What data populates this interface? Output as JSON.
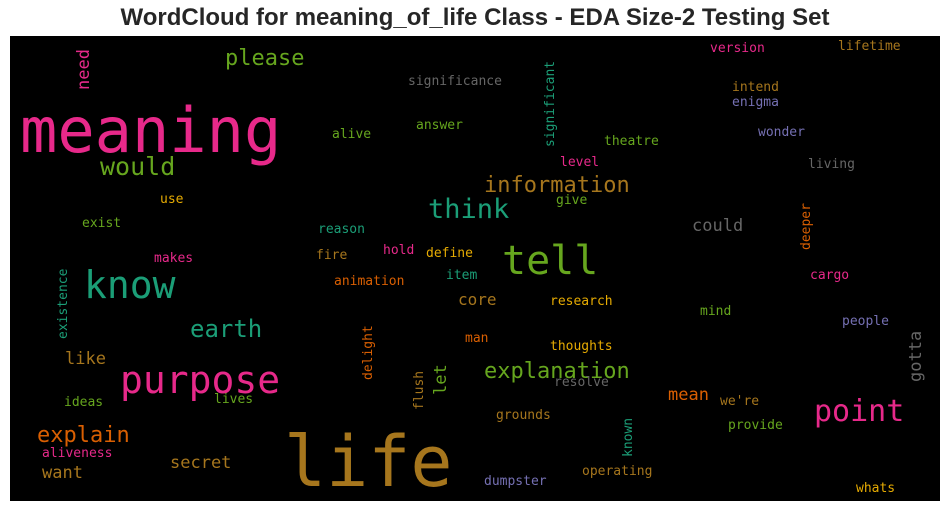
{
  "title": "WordCloud for meaning_of_life Class - EDA Size-2 Testing Set",
  "colors": {
    "magenta": "#e7298a",
    "green": "#66a61e",
    "teal": "#1b9e77",
    "orange": "#d95f02",
    "gold": "#e6ab02",
    "brown": "#a6761d",
    "purple": "#7570b3",
    "gray": "#666666"
  },
  "words": {
    "meaning": "meaning",
    "life": "life",
    "tell": "tell",
    "know": "know",
    "purpose": "purpose",
    "point": "point",
    "think": "think",
    "would": "would",
    "please": "please",
    "information": "information",
    "earth": "earth",
    "explanation": "explanation",
    "explain": "explain",
    "could": "could",
    "secret": "secret",
    "like": "like",
    "want": "want",
    "mean": "mean",
    "core": "core",
    "need": "need",
    "significance": "significance",
    "significant": "significant",
    "alive": "alive",
    "answer": "answer",
    "theatre": "theatre",
    "version": "version",
    "lifetime": "lifetime",
    "intend": "intend",
    "enigma": "enigma",
    "wonder": "wonder",
    "living": "living",
    "level": "level",
    "give": "give",
    "use": "use",
    "exist": "exist",
    "reason": "reason",
    "deeper": "deeper",
    "makes": "makes",
    "hold": "hold",
    "define": "define",
    "fire": "fire",
    "item": "item",
    "animation": "animation",
    "cargo": "cargo",
    "existence": "existence",
    "research": "research",
    "mind": "mind",
    "people": "people",
    "gotta": "gotta",
    "delight": "delight",
    "man": "man",
    "thoughts": "thoughts",
    "let": "let",
    "resolve": "resolve",
    "ideas": "ideas",
    "lives": "lives",
    "flush": "flush",
    "were": "we're",
    "grounds": "grounds",
    "provide": "provide",
    "aliveness": "aliveness",
    "known": "known",
    "operating": "operating",
    "dumpster": "dumpster",
    "whats": "whats"
  }
}
